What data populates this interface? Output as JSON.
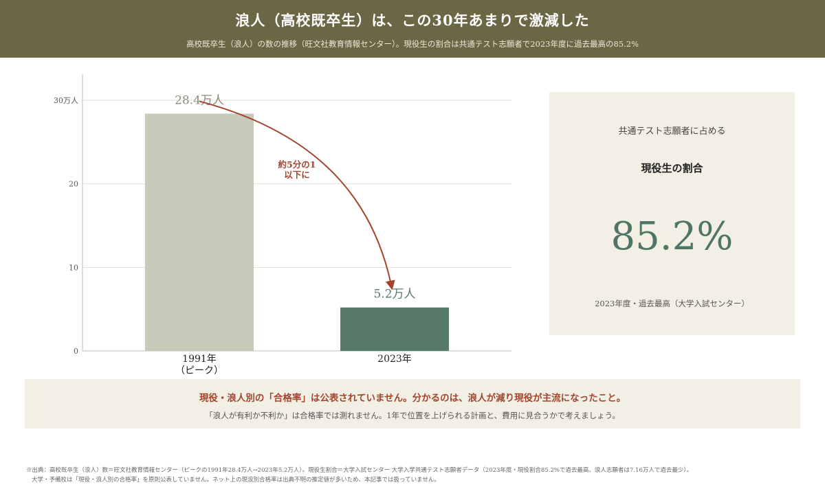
{
  "header": {
    "title": "浪人（高校既卒生）は、この30年あまりで激減した",
    "subtitle": "高校既卒生（浪人）の数の推移（旺文社教育情報センター）。現役生の割合は共通テスト志願者で2023年度に過去最高の85.2%"
  },
  "chart_data": {
    "type": "bar",
    "categories": [
      "1991年\n（ピーク）",
      "2023年"
    ],
    "values": [
      28.4,
      5.2
    ],
    "value_labels": [
      "28.4万人",
      "5.2万人"
    ],
    "ylim": [
      0,
      30
    ],
    "yticks": [
      0,
      10,
      20,
      30
    ],
    "ytick_labels": [
      "0",
      "10",
      "20",
      "30万人"
    ],
    "bar_colors": [
      "#c8cbb9",
      "#587a6b"
    ],
    "grid": true,
    "annotation": {
      "text": "約5分の1\n以下に",
      "color": "#a3442c"
    }
  },
  "panel": {
    "label": "共通テスト志願者に占める",
    "title": "現役生の割合",
    "value": "85.2%",
    "note": "2023年度・過去最高（大学入試センター）"
  },
  "callout": {
    "main": "現役・浪人別の「合格率」は公表されていません。分かるのは、浪人が減り現役が主流になったこと。",
    "sub": "「浪人が有利か不利か」は合格率では測れません。1年で位置を上げられる計画と、費用に見合うかで考えましょう。"
  },
  "footnote": {
    "line1": "※出典：高校既卒生（浪人）数＝旺文社教育情報センター（ピークの1991年28.4万人→2023年5.2万人）。現役生割合＝大学入試センター 大学入学共通テスト志願者データ（2023年度・現役割合85.2%で過去最高、浪人志願者は7.16万人で過去最少）。",
    "line2": "大学・予備校は「現役・浪人別の合格率」を原則公表していません。ネット上の現浪別合格率は出典不明の推定値が多いため、本記事では扱っていません。"
  }
}
